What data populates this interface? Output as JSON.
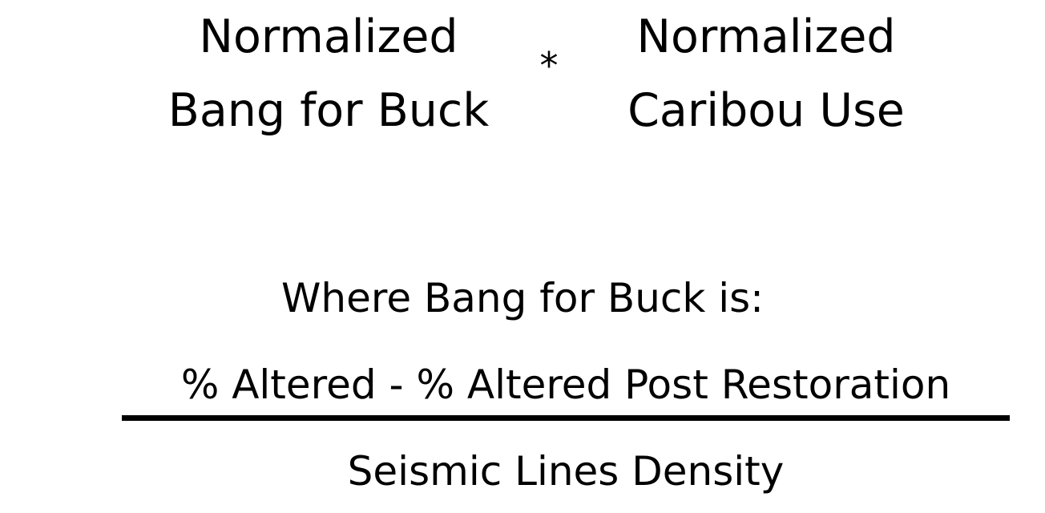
{
  "formula": {
    "left_term": {
      "line1": "Normalized",
      "line2": "Bang for Buck"
    },
    "operator": "*",
    "right_term": {
      "line1": "Normalized",
      "line2": "Caribou Use"
    }
  },
  "definition": {
    "intro": "Where Bang for Buck is:",
    "numerator": "% Altered - % Altered Post Restoration",
    "denominator": "Seismic Lines Density"
  }
}
